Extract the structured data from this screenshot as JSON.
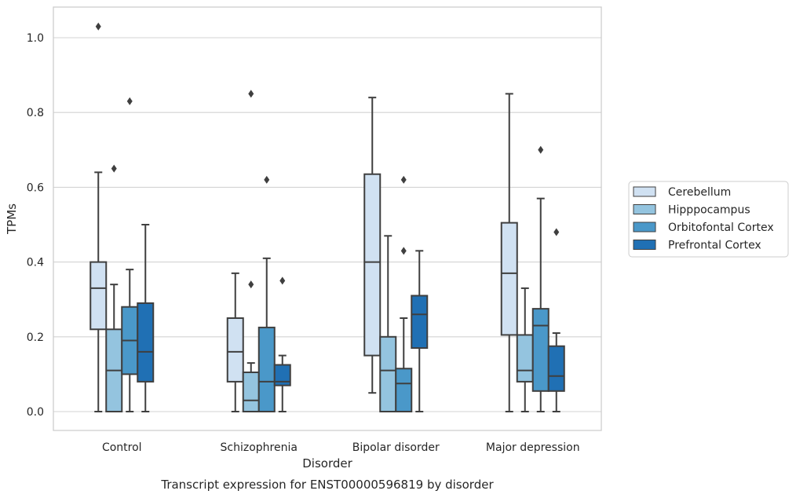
{
  "chart_data": {
    "type": "box",
    "xlabel": "Disorder",
    "ylabel": "TPMs",
    "caption": "Transcript expression for ENST00000596819 by disorder",
    "ylim": [
      -0.05,
      1.08
    ],
    "yticks": [
      "0.0",
      "0.2",
      "0.4",
      "0.6",
      "0.8",
      "1.0"
    ],
    "grid": "horizontal",
    "legend_position": "right",
    "categories": [
      "Control",
      "Schizophrenia",
      "Bipolar disorder",
      "Major depression"
    ],
    "series": [
      {
        "name": "Cerebellum",
        "color": "#d0e1f2",
        "boxes": [
          {
            "whislo": 0.0,
            "q1": 0.22,
            "med": 0.33,
            "q3": 0.4,
            "whishi": 0.64,
            "fliers": [
              1.03
            ]
          },
          {
            "whislo": 0.0,
            "q1": 0.08,
            "med": 0.16,
            "q3": 0.25,
            "whishi": 0.37,
            "fliers": []
          },
          {
            "whislo": 0.05,
            "q1": 0.15,
            "med": 0.4,
            "q3": 0.635,
            "whishi": 0.84,
            "fliers": []
          },
          {
            "whislo": 0.0,
            "q1": 0.205,
            "med": 0.37,
            "q3": 0.505,
            "whishi": 0.85,
            "fliers": []
          }
        ]
      },
      {
        "name": "Hipppocampus",
        "color": "#94c4df",
        "boxes": [
          {
            "whislo": 0.0,
            "q1": 0.0,
            "med": 0.11,
            "q3": 0.22,
            "whishi": 0.34,
            "fliers": [
              0.65
            ]
          },
          {
            "whislo": 0.0,
            "q1": 0.0,
            "med": 0.03,
            "q3": 0.105,
            "whishi": 0.13,
            "fliers": [
              0.34,
              0.85
            ]
          },
          {
            "whislo": 0.0,
            "q1": 0.0,
            "med": 0.11,
            "q3": 0.2,
            "whishi": 0.47,
            "fliers": []
          },
          {
            "whislo": 0.0,
            "q1": 0.08,
            "med": 0.11,
            "q3": 0.205,
            "whishi": 0.33,
            "fliers": []
          }
        ]
      },
      {
        "name": "Orbitofontal Cortex",
        "color": "#4a98c9",
        "boxes": [
          {
            "whislo": 0.0,
            "q1": 0.1,
            "med": 0.19,
            "q3": 0.28,
            "whishi": 0.38,
            "fliers": [
              0.83
            ]
          },
          {
            "whislo": 0.0,
            "q1": 0.0,
            "med": 0.08,
            "q3": 0.225,
            "whishi": 0.41,
            "fliers": [
              0.62
            ]
          },
          {
            "whislo": 0.0,
            "q1": 0.0,
            "med": 0.075,
            "q3": 0.115,
            "whishi": 0.25,
            "fliers": [
              0.43,
              0.62
            ]
          },
          {
            "whislo": 0.0,
            "q1": 0.055,
            "med": 0.23,
            "q3": 0.275,
            "whishi": 0.57,
            "fliers": [
              0.7
            ]
          }
        ]
      },
      {
        "name": "Prefrontal Cortex",
        "color": "#2070b4",
        "boxes": [
          {
            "whislo": 0.0,
            "q1": 0.08,
            "med": 0.16,
            "q3": 0.29,
            "whishi": 0.5,
            "fliers": []
          },
          {
            "whislo": 0.0,
            "q1": 0.07,
            "med": 0.08,
            "q3": 0.125,
            "whishi": 0.15,
            "fliers": [
              0.35
            ]
          },
          {
            "whislo": 0.0,
            "q1": 0.17,
            "med": 0.26,
            "q3": 0.31,
            "whishi": 0.43,
            "fliers": []
          },
          {
            "whislo": 0.0,
            "q1": 0.055,
            "med": 0.095,
            "q3": 0.175,
            "whishi": 0.21,
            "fliers": [
              0.48
            ]
          }
        ]
      }
    ]
  }
}
